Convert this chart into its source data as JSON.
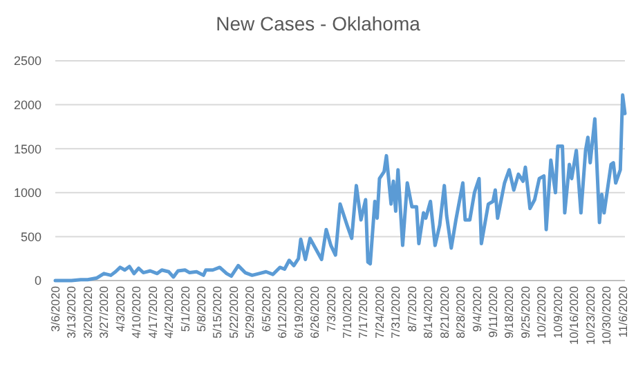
{
  "chart_data": {
    "type": "line",
    "title": "New Cases - Oklahoma",
    "x": [
      "2020-03-06",
      "2020-03-10",
      "2020-03-13",
      "2020-03-17",
      "2020-03-20",
      "2020-03-24",
      "2020-03-27",
      "2020-03-30",
      "2020-04-01",
      "2020-04-03",
      "2020-04-05",
      "2020-04-07",
      "2020-04-09",
      "2020-04-11",
      "2020-04-13",
      "2020-04-16",
      "2020-04-19",
      "2020-04-21",
      "2020-04-24",
      "2020-04-26",
      "2020-04-28",
      "2020-05-01",
      "2020-05-03",
      "2020-05-06",
      "2020-05-09",
      "2020-05-10",
      "2020-05-13",
      "2020-05-16",
      "2020-05-19",
      "2020-05-21",
      "2020-05-24",
      "2020-05-27",
      "2020-05-30",
      "2020-06-02",
      "2020-06-05",
      "2020-06-08",
      "2020-06-11",
      "2020-06-13",
      "2020-06-15",
      "2020-06-17",
      "2020-06-19",
      "2020-06-20",
      "2020-06-22",
      "2020-06-24",
      "2020-06-29",
      "2020-07-01",
      "2020-07-03",
      "2020-07-05",
      "2020-07-07",
      "2020-07-10",
      "2020-07-12",
      "2020-07-14",
      "2020-07-16",
      "2020-07-18",
      "2020-07-19",
      "2020-07-20",
      "2020-07-22",
      "2020-07-23",
      "2020-07-24",
      "2020-07-26",
      "2020-07-27",
      "2020-07-29",
      "2020-07-30",
      "2020-07-31",
      "2020-08-01",
      "2020-08-03",
      "2020-08-05",
      "2020-08-07",
      "2020-08-09",
      "2020-08-10",
      "2020-08-12",
      "2020-08-13",
      "2020-08-15",
      "2020-08-17",
      "2020-08-19",
      "2020-08-21",
      "2020-08-22",
      "2020-08-24",
      "2020-08-26",
      "2020-08-29",
      "2020-08-30",
      "2020-09-01",
      "2020-09-03",
      "2020-09-05",
      "2020-09-06",
      "2020-09-09",
      "2020-09-11",
      "2020-09-12",
      "2020-09-13",
      "2020-09-16",
      "2020-09-18",
      "2020-09-20",
      "2020-09-22",
      "2020-09-24",
      "2020-09-25",
      "2020-09-27",
      "2020-09-29",
      "2020-10-01",
      "2020-10-03",
      "2020-10-04",
      "2020-10-06",
      "2020-10-08",
      "2020-10-09",
      "2020-10-11",
      "2020-10-12",
      "2020-10-14",
      "2020-10-15",
      "2020-10-17",
      "2020-10-19",
      "2020-10-21",
      "2020-10-22",
      "2020-10-23",
      "2020-10-25",
      "2020-10-27",
      "2020-10-28",
      "2020-10-29",
      "2020-11-01",
      "2020-11-02",
      "2020-11-03",
      "2020-11-05",
      "2020-11-06",
      "2020-11-07"
    ],
    "series": [
      {
        "color": "#5b9bd5",
        "values": [
          0,
          0,
          0,
          10,
          10,
          30,
          80,
          60,
          100,
          150,
          120,
          160,
          80,
          140,
          90,
          110,
          80,
          120,
          100,
          40,
          110,
          120,
          90,
          100,
          60,
          120,
          120,
          150,
          80,
          50,
          170,
          90,
          60,
          80,
          100,
          70,
          150,
          130,
          230,
          170,
          250,
          470,
          240,
          480,
          240,
          580,
          400,
          290,
          870,
          630,
          480,
          1080,
          690,
          920,
          210,
          190,
          900,
          710,
          1160,
          1240,
          1420,
          870,
          1130,
          790,
          1260,
          400,
          1110,
          840,
          840,
          420,
          770,
          710,
          900,
          400,
          630,
          1080,
          740,
          370,
          690,
          1110,
          690,
          690,
          1000,
          1160,
          420,
          870,
          900,
          1030,
          710,
          1110,
          1260,
          1030,
          1210,
          1130,
          1290,
          820,
          920,
          1160,
          1190,
          580,
          1370,
          1000,
          1530,
          1530,
          770,
          1320,
          1160,
          1480,
          770,
          1480,
          1630,
          1340,
          1840,
          660,
          980,
          770,
          1320,
          1340,
          1110,
          1260,
          2110,
          1900
        ]
      }
    ],
    "xlim": [
      "2020-03-06",
      "2020-11-07"
    ],
    "xticks": [
      {
        "value": "2020-03-06",
        "label": "3/6/2020"
      },
      {
        "value": "2020-03-13",
        "label": "3/13/2020"
      },
      {
        "value": "2020-03-20",
        "label": "3/20/2020"
      },
      {
        "value": "2020-03-27",
        "label": "3/27/2020"
      },
      {
        "value": "2020-04-03",
        "label": "4/3/2020"
      },
      {
        "value": "2020-04-10",
        "label": "4/10/2020"
      },
      {
        "value": "2020-04-17",
        "label": "4/17/2020"
      },
      {
        "value": "2020-04-24",
        "label": "4/24/2020"
      },
      {
        "value": "2020-05-01",
        "label": "5/1/2020"
      },
      {
        "value": "2020-05-08",
        "label": "5/8/2020"
      },
      {
        "value": "2020-05-15",
        "label": "5/15/2020"
      },
      {
        "value": "2020-05-22",
        "label": "5/22/2020"
      },
      {
        "value": "2020-05-29",
        "label": "5/29/2020"
      },
      {
        "value": "2020-06-05",
        "label": "6/5/2020"
      },
      {
        "value": "2020-06-12",
        "label": "6/12/2020"
      },
      {
        "value": "2020-06-19",
        "label": "6/19/2020"
      },
      {
        "value": "2020-06-26",
        "label": "6/26/2020"
      },
      {
        "value": "2020-07-03",
        "label": "7/3/2020"
      },
      {
        "value": "2020-07-10",
        "label": "7/10/2020"
      },
      {
        "value": "2020-07-17",
        "label": "7/17/2020"
      },
      {
        "value": "2020-07-24",
        "label": "7/24/2020"
      },
      {
        "value": "2020-07-31",
        "label": "7/31/2020"
      },
      {
        "value": "2020-08-07",
        "label": "8/7/2020"
      },
      {
        "value": "2020-08-14",
        "label": "8/14/2020"
      },
      {
        "value": "2020-08-21",
        "label": "8/21/2020"
      },
      {
        "value": "2020-08-28",
        "label": "8/28/2020"
      },
      {
        "value": "2020-09-04",
        "label": "9/4/2020"
      },
      {
        "value": "2020-09-11",
        "label": "9/11/2020"
      },
      {
        "value": "2020-09-18",
        "label": "9/18/2020"
      },
      {
        "value": "2020-09-25",
        "label": "9/25/2020"
      },
      {
        "value": "2020-10-02",
        "label": "10/2/2020"
      },
      {
        "value": "2020-10-09",
        "label": "10/9/2020"
      },
      {
        "value": "2020-10-16",
        "label": "10/16/2020"
      },
      {
        "value": "2020-10-23",
        "label": "10/23/2020"
      },
      {
        "value": "2020-10-30",
        "label": "10/30/2020"
      },
      {
        "value": "2020-11-06",
        "label": "11/6/2020"
      }
    ],
    "ylim": [
      0,
      2500
    ],
    "yticks": [
      0,
      500,
      1000,
      1500,
      2000,
      2500
    ],
    "grid": "y",
    "marker": "none",
    "line_style": "solid"
  }
}
